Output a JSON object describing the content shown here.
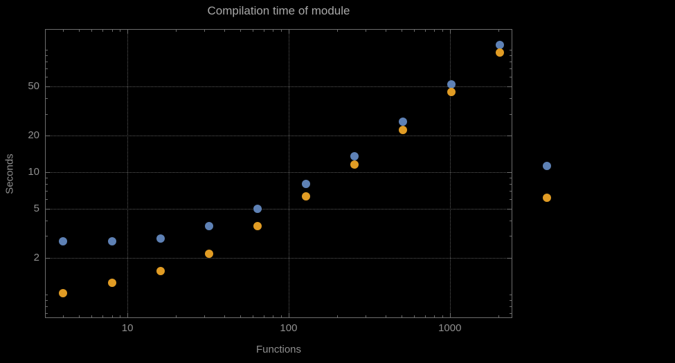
{
  "chart_data": {
    "type": "scatter",
    "title": "Compilation time of module",
    "xlabel": "Functions",
    "ylabel": "Seconds",
    "xscale": "log",
    "yscale": "log",
    "xlim": [
      3.08,
      2440
    ],
    "ylim": [
      0.64,
      148
    ],
    "x_ticks": [
      10,
      100,
      1000
    ],
    "y_ticks": [
      2,
      5,
      10,
      20,
      50
    ],
    "grid": "dotted",
    "x": [
      4,
      8,
      16,
      32,
      64,
      128,
      256,
      512,
      1024,
      2048
    ],
    "series": [
      {
        "name": "blue",
        "color": "#5e81b5",
        "values": [
          2.7,
          2.7,
          2.85,
          3.6,
          5.0,
          8.0,
          13.5,
          26,
          52,
          110
        ]
      },
      {
        "name": "orange",
        "color": "#e19c24",
        "values": [
          1.02,
          1.25,
          1.55,
          2.15,
          3.6,
          6.3,
          11.5,
          22,
          45,
          95
        ]
      }
    ],
    "legend_markers": [
      {
        "series": "blue",
        "color": "#5e81b5",
        "seconds": 11.3
      },
      {
        "series": "orange",
        "color": "#e19c24",
        "seconds": 6.2
      }
    ],
    "colors": {
      "background": "#000000",
      "frame": "#6e6e6e",
      "grid": "#5c5c5c",
      "tick_text": "#909090",
      "title_text": "#a8a8a8",
      "series_blue": "#5e81b5",
      "series_orange": "#e19c24"
    }
  }
}
